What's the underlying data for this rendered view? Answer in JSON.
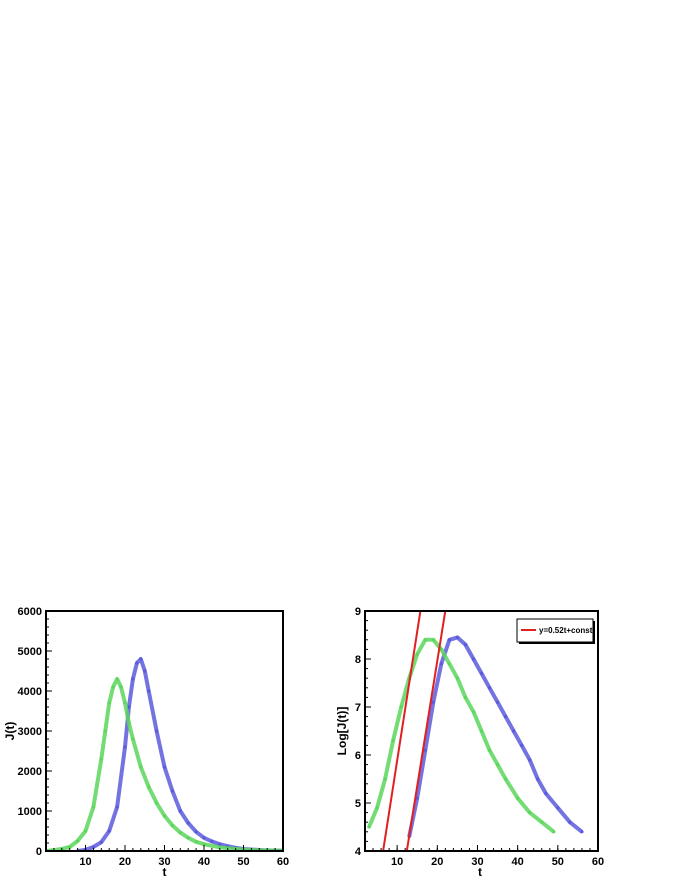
{
  "chart_data": [
    {
      "type": "line",
      "xlabel": "t",
      "ylabel": "J(t)",
      "xlim": [
        0,
        60
      ],
      "ylim": [
        0,
        6000
      ],
      "xticks": [
        10,
        20,
        30,
        40,
        50,
        60
      ],
      "yticks": [
        0,
        1000,
        2000,
        3000,
        4000,
        5000,
        6000
      ],
      "grid": false,
      "series": [
        {
          "color": "#5a5adc",
          "x": [
            8,
            10,
            12,
            14,
            16,
            18,
            20,
            21,
            22,
            23,
            24,
            25,
            26,
            28,
            30,
            32,
            34,
            36,
            38,
            40,
            42,
            44,
            46,
            48,
            50,
            55,
            60
          ],
          "y": [
            0,
            30,
            100,
            220,
            500,
            1100,
            2600,
            3600,
            4300,
            4700,
            4800,
            4500,
            4000,
            3000,
            2100,
            1500,
            1000,
            700,
            480,
            330,
            240,
            170,
            120,
            80,
            50,
            20,
            5
          ]
        },
        {
          "color": "#5cd65c",
          "x": [
            0,
            4,
            6,
            8,
            10,
            12,
            14,
            15,
            16,
            17,
            18,
            19,
            20,
            21,
            22,
            24,
            26,
            28,
            30,
            32,
            34,
            36,
            38,
            40,
            44,
            48,
            52,
            56,
            60
          ],
          "y": [
            0,
            50,
            100,
            250,
            500,
            1100,
            2300,
            3000,
            3700,
            4100,
            4300,
            4100,
            3700,
            3200,
            2800,
            2100,
            1600,
            1200,
            880,
            640,
            460,
            330,
            230,
            170,
            90,
            50,
            25,
            12,
            5
          ]
        }
      ]
    },
    {
      "type": "line",
      "xlabel": "t",
      "ylabel": "Log[J(t)]",
      "xlim": [
        2,
        60
      ],
      "ylim": [
        4,
        9
      ],
      "xticks": [
        10,
        20,
        30,
        40,
        50,
        60
      ],
      "yticks": [
        4,
        5,
        6,
        7,
        8,
        9
      ],
      "grid": false,
      "legend": {
        "position": "top-right",
        "entries": [
          "y=0.52t+const"
        ]
      },
      "series": [
        {
          "color": "#5a5adc",
          "x": [
            13,
            15,
            17,
            19,
            21,
            23,
            25,
            27,
            29,
            31,
            33,
            35,
            37,
            39,
            41,
            43,
            45,
            47,
            50,
            53,
            56
          ],
          "y": [
            4.3,
            5.1,
            6.1,
            7.1,
            7.9,
            8.4,
            8.45,
            8.3,
            8.0,
            7.7,
            7.4,
            7.1,
            6.8,
            6.5,
            6.2,
            5.9,
            5.5,
            5.2,
            4.9,
            4.6,
            4.4
          ]
        },
        {
          "color": "#5cd65c",
          "x": [
            3,
            5,
            7,
            9,
            11,
            13,
            15,
            17,
            19,
            21,
            23,
            25,
            27,
            29,
            31,
            33,
            35,
            37,
            40,
            43,
            46,
            49
          ],
          "y": [
            4.5,
            4.9,
            5.5,
            6.3,
            7.0,
            7.6,
            8.1,
            8.4,
            8.4,
            8.2,
            7.9,
            7.6,
            7.2,
            6.9,
            6.5,
            6.1,
            5.8,
            5.5,
            5.1,
            4.8,
            4.6,
            4.4
          ]
        },
        {
          "name": "y=0.52t+const",
          "color": "#e02020",
          "x": [
            6.5,
            15.8
          ],
          "y": [
            4.0,
            9.0
          ]
        },
        {
          "name": "y=0.52t+const",
          "color": "#e02020",
          "x": [
            12.4,
            22.0
          ],
          "y": [
            4.0,
            9.0
          ]
        }
      ]
    }
  ]
}
